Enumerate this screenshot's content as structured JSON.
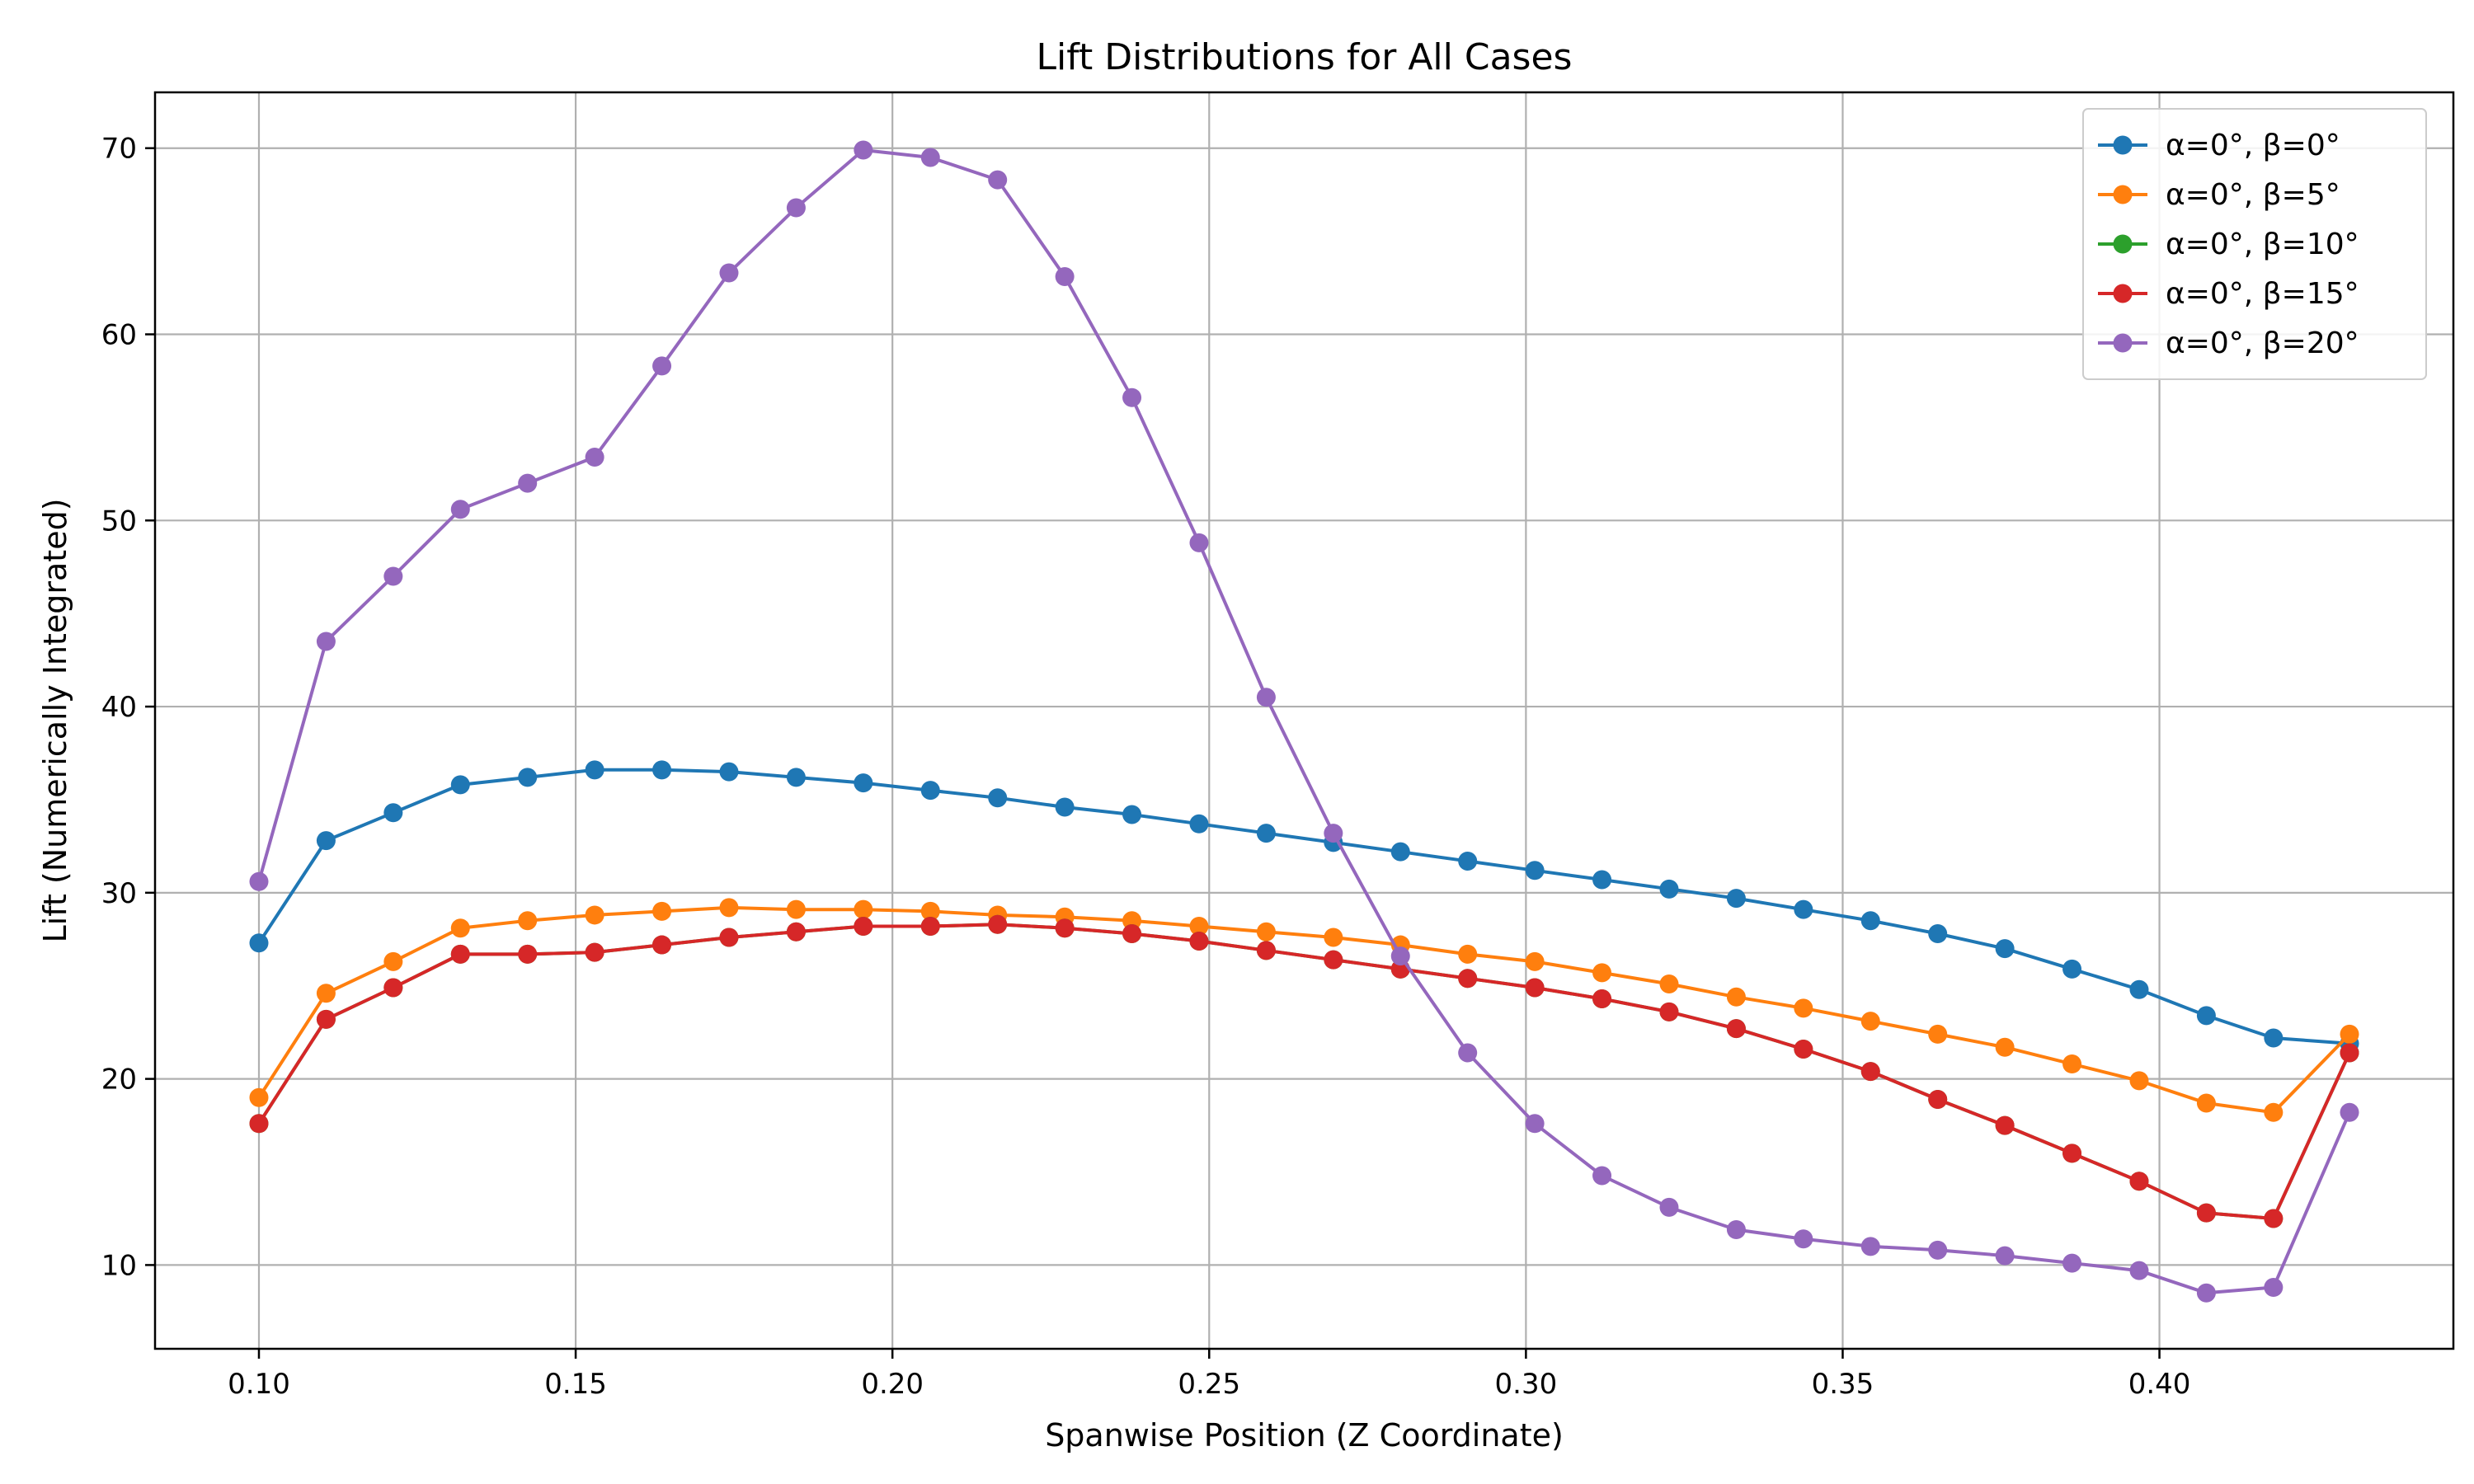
{
  "chart_data": {
    "type": "line",
    "title": "Lift Distributions for All Cases",
    "xlabel": "Spanwise Position (Z Coordinate)",
    "ylabel": "Lift (Numerically Integrated)",
    "xlim": [
      0.0836,
      0.4464
    ],
    "ylim": [
      5.5,
      73.0
    ],
    "xticks": [
      0.1,
      0.15,
      0.2,
      0.25,
      0.3,
      0.35,
      0.4
    ],
    "xtick_labels": [
      "0.10",
      "0.15",
      "0.20",
      "0.25",
      "0.30",
      "0.35",
      "0.40"
    ],
    "yticks": [
      10,
      20,
      30,
      40,
      50,
      60,
      70
    ],
    "ytick_labels": [
      "10",
      "20",
      "30",
      "40",
      "50",
      "60",
      "70"
    ],
    "grid": true,
    "legend_position": "top-right",
    "x": [
      0.1,
      0.1106,
      0.1212,
      0.1318,
      0.1424,
      0.153,
      0.1636,
      0.1742,
      0.1848,
      0.1954,
      0.206,
      0.2166,
      0.2272,
      0.2378,
      0.2484,
      0.259,
      0.2696,
      0.2802,
      0.2908,
      0.3014,
      0.312,
      0.3226,
      0.3332,
      0.3438,
      0.3544,
      0.365,
      0.3756,
      0.3862,
      0.3968,
      0.4074,
      0.418,
      0.43
    ],
    "series": [
      {
        "name": "α=0°, β=0°",
        "color": "#1f77b4",
        "values": [
          27.3,
          32.8,
          34.3,
          35.8,
          36.2,
          36.6,
          36.6,
          36.5,
          36.2,
          35.9,
          35.5,
          35.1,
          34.6,
          34.2,
          33.7,
          33.2,
          32.7,
          32.2,
          31.7,
          31.2,
          30.7,
          30.2,
          29.7,
          29.1,
          28.5,
          27.8,
          27.0,
          25.9,
          24.8,
          23.4,
          22.2,
          21.9
        ]
      },
      {
        "name": "α=0°, β=5°",
        "color": "#ff7f0e",
        "values": [
          19.0,
          24.6,
          26.3,
          28.1,
          28.5,
          28.8,
          29.0,
          29.2,
          29.1,
          29.1,
          29.0,
          28.8,
          28.7,
          28.5,
          28.2,
          27.9,
          27.6,
          27.2,
          26.7,
          26.3,
          25.7,
          25.1,
          24.4,
          23.8,
          23.1,
          22.4,
          21.7,
          20.8,
          19.9,
          18.7,
          18.2,
          22.4
        ]
      },
      {
        "name": "α=0°, β=10°",
        "color": "#2ca02c",
        "values": [
          17.6,
          23.2,
          24.9,
          26.7,
          26.7,
          26.8,
          27.2,
          27.6,
          27.9,
          28.2,
          28.2,
          28.3,
          28.1,
          27.8,
          27.4,
          26.9,
          26.4,
          25.9,
          25.4,
          24.9,
          24.3,
          23.6,
          22.7,
          21.6,
          20.4,
          18.9,
          17.5,
          16.0,
          14.5,
          12.8,
          12.5,
          21.4
        ]
      },
      {
        "name": "α=0°, β=15°",
        "color": "#d62728",
        "values": [
          17.6,
          23.2,
          24.9,
          26.7,
          26.7,
          26.8,
          27.2,
          27.6,
          27.9,
          28.2,
          28.2,
          28.3,
          28.1,
          27.8,
          27.4,
          26.9,
          26.4,
          25.9,
          25.4,
          24.9,
          24.3,
          23.6,
          22.7,
          21.6,
          20.4,
          18.9,
          17.5,
          16.0,
          14.5,
          12.8,
          12.5,
          21.4
        ]
      },
      {
        "name": "α=0°, β=20°",
        "color": "#9467bd",
        "values": [
          30.6,
          43.5,
          47.0,
          50.6,
          52.0,
          53.4,
          58.3,
          63.3,
          66.8,
          69.9,
          69.5,
          68.3,
          63.1,
          56.6,
          48.8,
          40.5,
          33.2,
          26.6,
          21.4,
          17.6,
          14.8,
          13.1,
          11.9,
          11.4,
          11.0,
          10.8,
          10.5,
          10.1,
          9.7,
          8.5,
          8.8,
          18.2
        ]
      }
    ]
  }
}
